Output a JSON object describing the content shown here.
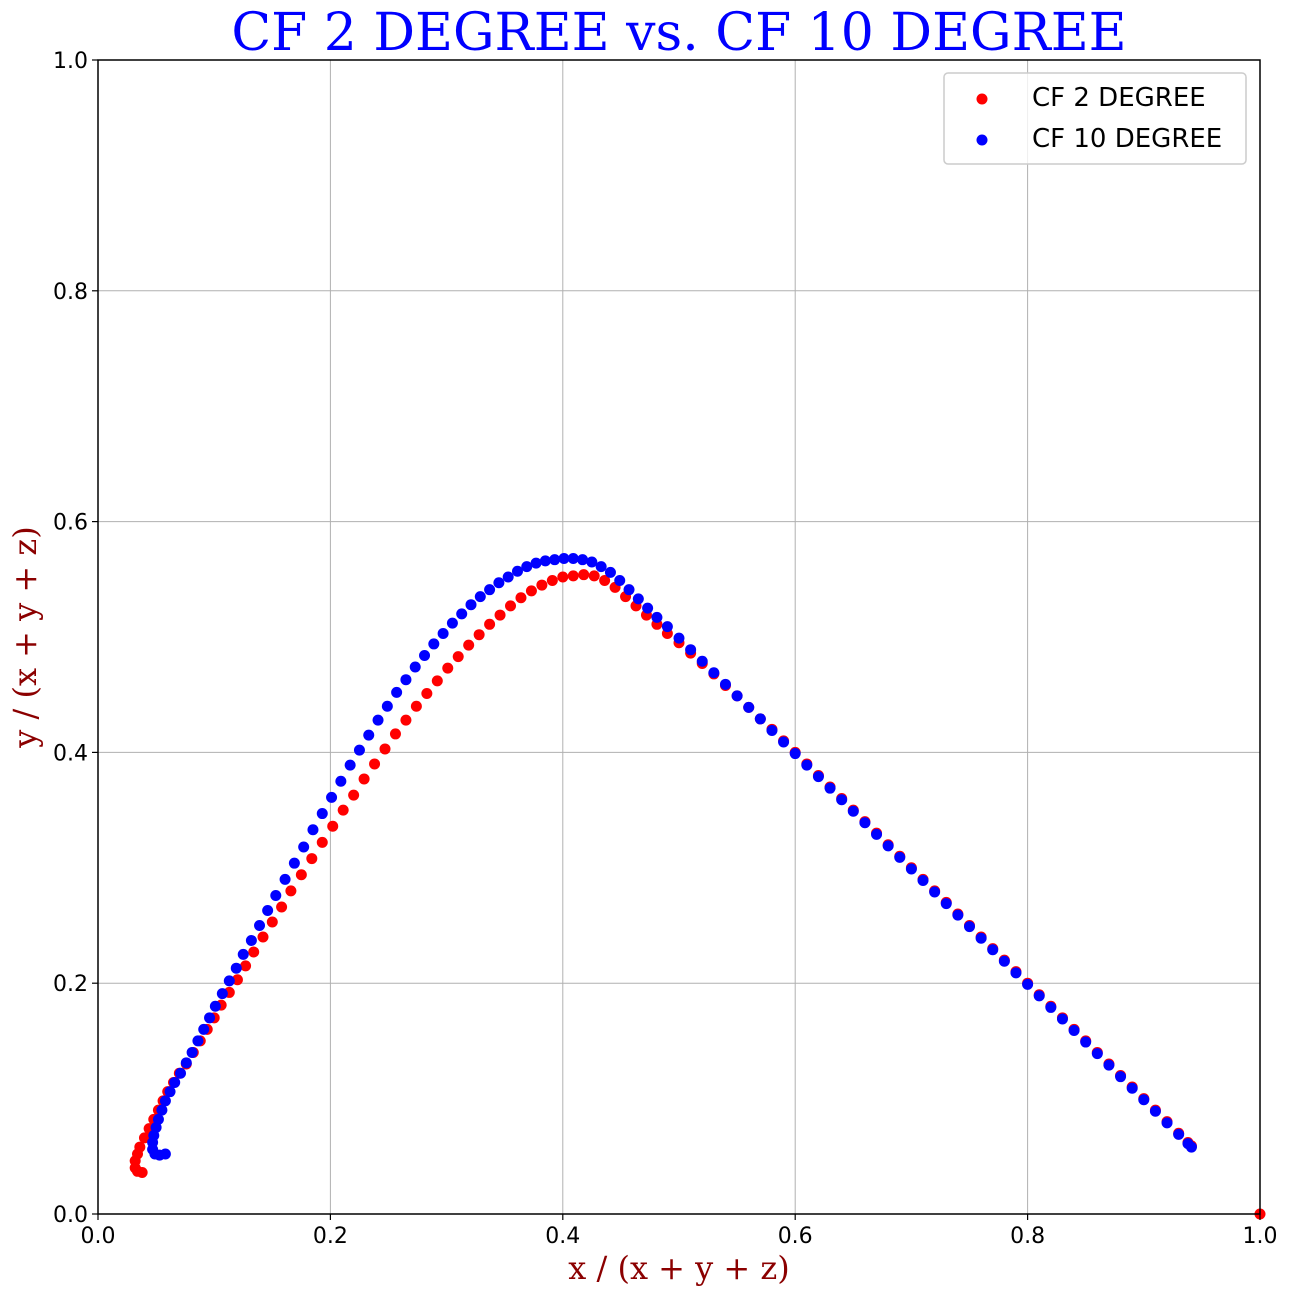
{
  "chart_data": {
    "type": "scatter",
    "title": "CF 2 DEGREE vs. CF 10 DEGREE",
    "title_color": "#0000ff",
    "xlabel": "x / (x + y + z)",
    "ylabel": "y / (x + y + z)",
    "label_color": "#8b0000",
    "xlim": [
      0.0,
      1.0
    ],
    "ylim": [
      0.0,
      1.0
    ],
    "xticks": [
      "0.0",
      "0.2",
      "0.4",
      "0.6",
      "0.8",
      "1.0"
    ],
    "yticks": [
      "0.0",
      "0.2",
      "0.4",
      "0.6",
      "0.8",
      "1.0"
    ],
    "grid": true,
    "legend_position": "top-right",
    "series": [
      {
        "name": "CF 2 DEGREE",
        "color": "#ff0000",
        "points": [
          [
            0.038,
            0.036
          ],
          [
            0.034,
            0.037
          ],
          [
            0.032,
            0.04
          ],
          [
            0.032,
            0.046
          ],
          [
            0.034,
            0.052
          ],
          [
            0.036,
            0.058
          ],
          [
            0.04,
            0.066
          ],
          [
            0.044,
            0.074
          ],
          [
            0.048,
            0.082
          ],
          [
            0.052,
            0.09
          ],
          [
            0.056,
            0.098
          ],
          [
            0.06,
            0.106
          ],
          [
            0.065,
            0.114
          ],
          [
            0.07,
            0.122
          ],
          [
            0.076,
            0.13
          ],
          [
            0.082,
            0.14
          ],
          [
            0.088,
            0.15
          ],
          [
            0.094,
            0.16
          ],
          [
            0.1,
            0.17
          ],
          [
            0.106,
            0.181
          ],
          [
            0.113,
            0.192
          ],
          [
            0.12,
            0.203
          ],
          [
            0.127,
            0.215
          ],
          [
            0.134,
            0.227
          ],
          [
            0.142,
            0.24
          ],
          [
            0.15,
            0.253
          ],
          [
            0.158,
            0.266
          ],
          [
            0.166,
            0.28
          ],
          [
            0.175,
            0.294
          ],
          [
            0.184,
            0.308
          ],
          [
            0.193,
            0.322
          ],
          [
            0.202,
            0.336
          ],
          [
            0.211,
            0.35
          ],
          [
            0.22,
            0.363
          ],
          [
            0.229,
            0.377
          ],
          [
            0.238,
            0.39
          ],
          [
            0.247,
            0.403
          ],
          [
            0.256,
            0.416
          ],
          [
            0.265,
            0.428
          ],
          [
            0.274,
            0.44
          ],
          [
            0.283,
            0.451
          ],
          [
            0.292,
            0.462
          ],
          [
            0.301,
            0.473
          ],
          [
            0.31,
            0.483
          ],
          [
            0.319,
            0.493
          ],
          [
            0.328,
            0.502
          ],
          [
            0.337,
            0.511
          ],
          [
            0.346,
            0.519
          ],
          [
            0.355,
            0.527
          ],
          [
            0.364,
            0.534
          ],
          [
            0.373,
            0.54
          ],
          [
            0.382,
            0.545
          ],
          [
            0.391,
            0.549
          ],
          [
            0.4,
            0.552
          ],
          [
            0.409,
            0.553
          ],
          [
            0.418,
            0.554
          ],
          [
            0.427,
            0.553
          ],
          [
            0.436,
            0.549
          ],
          [
            0.445,
            0.543
          ],
          [
            0.454,
            0.535
          ],
          [
            0.463,
            0.527
          ],
          [
            0.472,
            0.519
          ],
          [
            0.481,
            0.511
          ],
          [
            0.49,
            0.503
          ],
          [
            0.5,
            0.495
          ],
          [
            0.51,
            0.486
          ],
          [
            0.52,
            0.477
          ],
          [
            0.53,
            0.468
          ],
          [
            0.54,
            0.458
          ],
          [
            0.55,
            0.449
          ],
          [
            0.56,
            0.439
          ],
          [
            0.57,
            0.429
          ],
          [
            0.58,
            0.42
          ],
          [
            0.59,
            0.41
          ],
          [
            0.6,
            0.4
          ],
          [
            0.61,
            0.39
          ],
          [
            0.62,
            0.38
          ],
          [
            0.63,
            0.37
          ],
          [
            0.64,
            0.36
          ],
          [
            0.65,
            0.35
          ],
          [
            0.66,
            0.34
          ],
          [
            0.67,
            0.33
          ],
          [
            0.68,
            0.32
          ],
          [
            0.69,
            0.31
          ],
          [
            0.7,
            0.3
          ],
          [
            0.71,
            0.29
          ],
          [
            0.72,
            0.28
          ],
          [
            0.73,
            0.27
          ],
          [
            0.74,
            0.26
          ],
          [
            0.75,
            0.25
          ],
          [
            0.76,
            0.24
          ],
          [
            0.77,
            0.23
          ],
          [
            0.78,
            0.22
          ],
          [
            0.79,
            0.21
          ],
          [
            0.8,
            0.2
          ],
          [
            0.81,
            0.19
          ],
          [
            0.82,
            0.18
          ],
          [
            0.83,
            0.17
          ],
          [
            0.84,
            0.16
          ],
          [
            0.85,
            0.15
          ],
          [
            0.86,
            0.14
          ],
          [
            0.87,
            0.13
          ],
          [
            0.88,
            0.12
          ],
          [
            0.89,
            0.11
          ],
          [
            0.9,
            0.1
          ],
          [
            0.91,
            0.09
          ],
          [
            0.92,
            0.08
          ],
          [
            0.93,
            0.07
          ],
          [
            0.938,
            0.062
          ],
          [
            0.941,
            0.059
          ],
          [
            1.0,
            0.0
          ]
        ]
      },
      {
        "name": "CF 10 DEGREE",
        "color": "#0000ff",
        "points": [
          [
            0.058,
            0.052
          ],
          [
            0.053,
            0.051
          ],
          [
            0.049,
            0.052
          ],
          [
            0.047,
            0.056
          ],
          [
            0.047,
            0.062
          ],
          [
            0.048,
            0.068
          ],
          [
            0.05,
            0.075
          ],
          [
            0.052,
            0.082
          ],
          [
            0.055,
            0.09
          ],
          [
            0.058,
            0.098
          ],
          [
            0.062,
            0.106
          ],
          [
            0.066,
            0.114
          ],
          [
            0.071,
            0.122
          ],
          [
            0.076,
            0.131
          ],
          [
            0.081,
            0.14
          ],
          [
            0.086,
            0.15
          ],
          [
            0.091,
            0.16
          ],
          [
            0.096,
            0.17
          ],
          [
            0.101,
            0.18
          ],
          [
            0.107,
            0.191
          ],
          [
            0.113,
            0.202
          ],
          [
            0.119,
            0.213
          ],
          [
            0.125,
            0.225
          ],
          [
            0.132,
            0.237
          ],
          [
            0.139,
            0.25
          ],
          [
            0.146,
            0.263
          ],
          [
            0.153,
            0.276
          ],
          [
            0.161,
            0.29
          ],
          [
            0.169,
            0.304
          ],
          [
            0.177,
            0.318
          ],
          [
            0.185,
            0.333
          ],
          [
            0.193,
            0.347
          ],
          [
            0.201,
            0.361
          ],
          [
            0.209,
            0.375
          ],
          [
            0.217,
            0.389
          ],
          [
            0.225,
            0.402
          ],
          [
            0.233,
            0.415
          ],
          [
            0.241,
            0.428
          ],
          [
            0.249,
            0.44
          ],
          [
            0.257,
            0.452
          ],
          [
            0.265,
            0.463
          ],
          [
            0.273,
            0.474
          ],
          [
            0.281,
            0.484
          ],
          [
            0.289,
            0.494
          ],
          [
            0.297,
            0.503
          ],
          [
            0.305,
            0.512
          ],
          [
            0.313,
            0.52
          ],
          [
            0.321,
            0.528
          ],
          [
            0.329,
            0.535
          ],
          [
            0.337,
            0.541
          ],
          [
            0.345,
            0.547
          ],
          [
            0.353,
            0.552
          ],
          [
            0.361,
            0.557
          ],
          [
            0.369,
            0.561
          ],
          [
            0.377,
            0.564
          ],
          [
            0.385,
            0.566
          ],
          [
            0.393,
            0.567
          ],
          [
            0.401,
            0.568
          ],
          [
            0.409,
            0.568
          ],
          [
            0.417,
            0.567
          ],
          [
            0.425,
            0.565
          ],
          [
            0.433,
            0.561
          ],
          [
            0.441,
            0.556
          ],
          [
            0.449,
            0.549
          ],
          [
            0.457,
            0.541
          ],
          [
            0.465,
            0.533
          ],
          [
            0.473,
            0.525
          ],
          [
            0.481,
            0.517
          ],
          [
            0.49,
            0.509
          ],
          [
            0.5,
            0.499
          ],
          [
            0.51,
            0.489
          ],
          [
            0.52,
            0.479
          ],
          [
            0.53,
            0.469
          ],
          [
            0.54,
            0.459
          ],
          [
            0.55,
            0.449
          ],
          [
            0.56,
            0.439
          ],
          [
            0.57,
            0.429
          ],
          [
            0.58,
            0.419
          ],
          [
            0.59,
            0.409
          ],
          [
            0.6,
            0.399
          ],
          [
            0.61,
            0.389
          ],
          [
            0.62,
            0.379
          ],
          [
            0.63,
            0.369
          ],
          [
            0.64,
            0.359
          ],
          [
            0.65,
            0.349
          ],
          [
            0.66,
            0.339
          ],
          [
            0.67,
            0.329
          ],
          [
            0.68,
            0.319
          ],
          [
            0.69,
            0.309
          ],
          [
            0.7,
            0.299
          ],
          [
            0.71,
            0.289
          ],
          [
            0.72,
            0.279
          ],
          [
            0.73,
            0.269
          ],
          [
            0.74,
            0.259
          ],
          [
            0.75,
            0.249
          ],
          [
            0.76,
            0.239
          ],
          [
            0.77,
            0.229
          ],
          [
            0.78,
            0.219
          ],
          [
            0.79,
            0.209
          ],
          [
            0.8,
            0.199
          ],
          [
            0.81,
            0.189
          ],
          [
            0.82,
            0.179
          ],
          [
            0.83,
            0.169
          ],
          [
            0.84,
            0.159
          ],
          [
            0.85,
            0.149
          ],
          [
            0.86,
            0.139
          ],
          [
            0.87,
            0.129
          ],
          [
            0.88,
            0.119
          ],
          [
            0.89,
            0.109
          ],
          [
            0.9,
            0.099
          ],
          [
            0.91,
            0.089
          ],
          [
            0.92,
            0.079
          ],
          [
            0.93,
            0.069
          ],
          [
            0.938,
            0.061
          ],
          [
            0.941,
            0.058
          ]
        ]
      }
    ]
  }
}
